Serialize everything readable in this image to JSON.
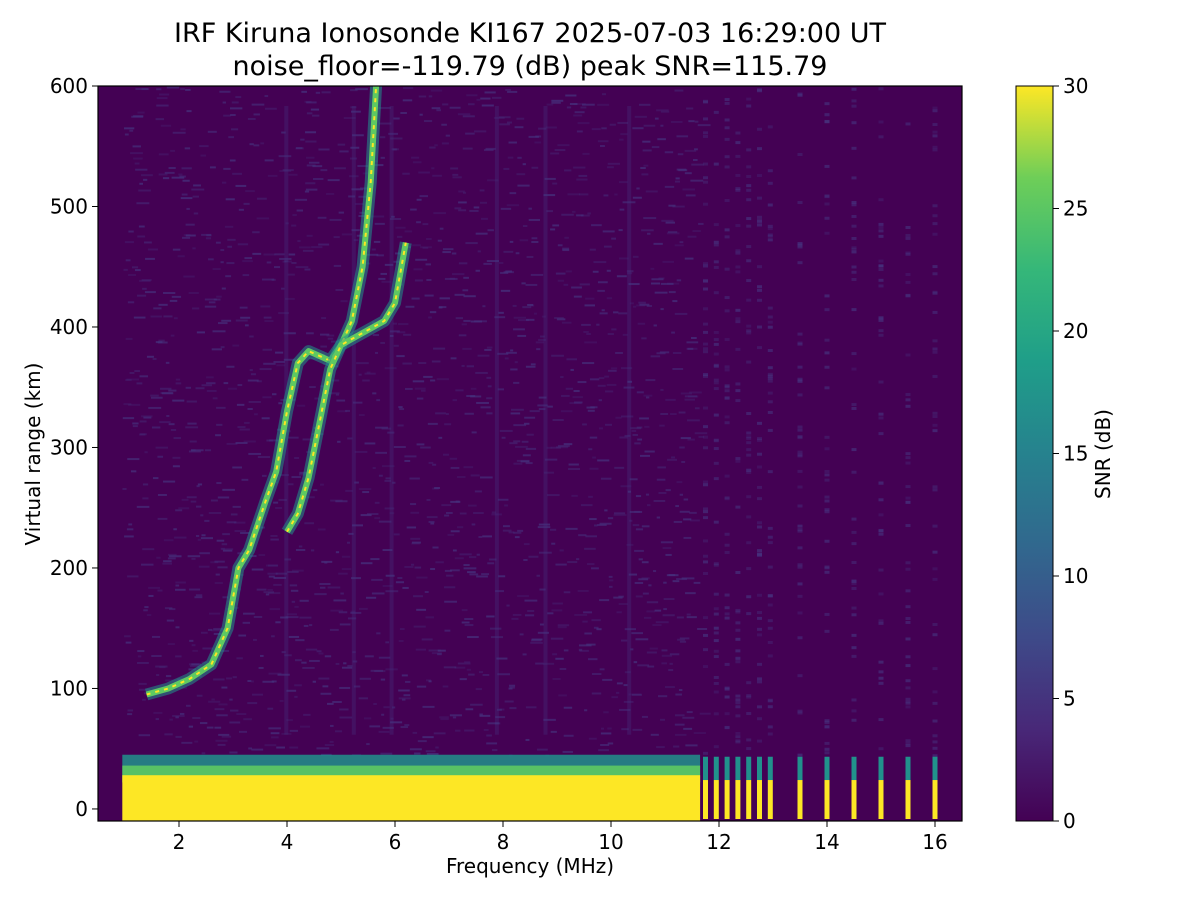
{
  "title": "IRF Kiruna Ionosonde KI167 2025-07-03 16:29:00  UT",
  "subtitle": "noise_floor=-119.79 (dB) peak SNR=115.79",
  "chart_data": {
    "type": "heatmap",
    "xlabel": "Frequency (MHz)",
    "ylabel": "Virtual range (km)",
    "xlim": [
      0.5,
      16.5
    ],
    "ylim": [
      -10,
      600
    ],
    "xticks": [
      2,
      4,
      6,
      8,
      10,
      12,
      14,
      16
    ],
    "yticks": [
      0,
      100,
      200,
      300,
      400,
      500,
      600
    ],
    "colorbar": {
      "label": "SNR (dB)",
      "range": [
        0,
        30
      ],
      "ticks": [
        0,
        5,
        10,
        15,
        20,
        25,
        30
      ],
      "colormap": "viridis"
    },
    "colors": {
      "background": "#440154",
      "noise": "#46327e",
      "mid": "#21918c",
      "high": "#5ec962",
      "saturated": "#fde725"
    },
    "sweep": {
      "continuous_start_mhz": 0.95,
      "continuous_end_mhz": 11.65,
      "discrete_channels_mhz": [
        11.75,
        11.95,
        12.15,
        12.35,
        12.55,
        12.75,
        12.95,
        13.5,
        14.0,
        14.5,
        15.0,
        15.5,
        16.0
      ]
    },
    "ground_clutter_range_km": [
      -10,
      45
    ],
    "traces": [
      {
        "name": "",
        "x": [
          1.4,
          1.8,
          2.2,
          2.6,
          2.9,
          3.1,
          3.3,
          3.6,
          3.8,
          4.0,
          4.2,
          4.4,
          4.8,
          5.0,
          5.2,
          5.4,
          5.55,
          5.65
        ],
        "y": [
          95,
          100,
          108,
          120,
          150,
          200,
          215,
          255,
          280,
          330,
          370,
          380,
          372,
          385,
          405,
          450,
          520,
          600
        ]
      },
      {
        "name": "",
        "x": [
          4.0,
          4.2,
          4.4,
          4.6,
          4.8,
          5.0,
          5.2,
          5.4,
          5.6,
          5.8,
          6.0,
          6.2
        ],
        "y": [
          230,
          245,
          275,
          320,
          365,
          385,
          390,
          395,
          400,
          405,
          420,
          470
        ]
      }
    ]
  }
}
